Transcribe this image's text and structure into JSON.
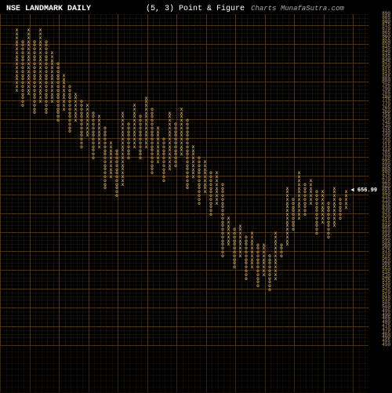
{
  "header": {
    "title_left": "NSE LANDMARK DAILY",
    "title_mid": "(5, 3) Point & Figure",
    "title_source": "Charts MunafaSutra.com"
  },
  "chart": {
    "background_color": "#000000",
    "grid_color": "#6b4a1a",
    "grid_color_dim": "#3a2810",
    "text_color": "#ffffff",
    "axis_label_color": "#c9a860",
    "x_symbol_color": "#d4a860",
    "o_symbol_color": "#d4a860",
    "price_marker_color": "#ffffff",
    "y_max": 890,
    "y_min": 450,
    "y_step": 5,
    "box_size": 5,
    "reversal": 3,
    "current_price": 656.99,
    "current_price_y": 655,
    "columns": [
      {
        "type": "X",
        "low": 790,
        "high": 870
      },
      {
        "type": "O",
        "low": 770,
        "high": 855
      },
      {
        "type": "X",
        "low": 785,
        "high": 870
      },
      {
        "type": "O",
        "low": 760,
        "high": 855
      },
      {
        "type": "X",
        "low": 775,
        "high": 870
      },
      {
        "type": "O",
        "low": 760,
        "high": 855
      },
      {
        "type": "X",
        "low": 775,
        "high": 840
      },
      {
        "type": "O",
        "low": 750,
        "high": 825
      },
      {
        "type": "X",
        "low": 765,
        "high": 810
      },
      {
        "type": "O",
        "low": 735,
        "high": 795
      },
      {
        "type": "X",
        "low": 750,
        "high": 785
      },
      {
        "type": "O",
        "low": 715,
        "high": 775
      },
      {
        "type": "X",
        "low": 730,
        "high": 770
      },
      {
        "type": "O",
        "low": 700,
        "high": 760
      },
      {
        "type": "X",
        "low": 715,
        "high": 755
      },
      {
        "type": "O",
        "low": 660,
        "high": 740
      },
      {
        "type": "X",
        "low": 675,
        "high": 720
      },
      {
        "type": "O",
        "low": 650,
        "high": 710
      },
      {
        "type": "X",
        "low": 665,
        "high": 760
      },
      {
        "type": "O",
        "low": 700,
        "high": 745
      },
      {
        "type": "X",
        "low": 715,
        "high": 770
      },
      {
        "type": "O",
        "low": 700,
        "high": 755
      },
      {
        "type": "X",
        "low": 715,
        "high": 780
      },
      {
        "type": "O",
        "low": 680,
        "high": 765
      },
      {
        "type": "X",
        "low": 695,
        "high": 740
      },
      {
        "type": "O",
        "low": 670,
        "high": 725
      },
      {
        "type": "X",
        "low": 685,
        "high": 760
      },
      {
        "type": "O",
        "low": 690,
        "high": 745
      },
      {
        "type": "X",
        "low": 705,
        "high": 765
      },
      {
        "type": "O",
        "low": 660,
        "high": 750
      },
      {
        "type": "X",
        "low": 675,
        "high": 715
      },
      {
        "type": "O",
        "low": 640,
        "high": 700
      },
      {
        "type": "X",
        "low": 655,
        "high": 695
      },
      {
        "type": "O",
        "low": 625,
        "high": 680
      },
      {
        "type": "X",
        "low": 640,
        "high": 680
      },
      {
        "type": "O",
        "low": 570,
        "high": 665
      },
      {
        "type": "X",
        "low": 585,
        "high": 620
      },
      {
        "type": "O",
        "low": 555,
        "high": 605
      },
      {
        "type": "X",
        "low": 570,
        "high": 610
      },
      {
        "type": "O",
        "low": 540,
        "high": 595
      },
      {
        "type": "X",
        "low": 555,
        "high": 600
      },
      {
        "type": "O",
        "low": 530,
        "high": 585
      },
      {
        "type": "X",
        "low": 545,
        "high": 585
      },
      {
        "type": "O",
        "low": 525,
        "high": 570
      },
      {
        "type": "X",
        "low": 540,
        "high": 600
      },
      {
        "type": "O",
        "low": 570,
        "high": 585
      },
      {
        "type": "X",
        "low": 585,
        "high": 660
      },
      {
        "type": "O",
        "low": 605,
        "high": 645
      },
      {
        "type": "X",
        "low": 620,
        "high": 680
      },
      {
        "type": "O",
        "low": 625,
        "high": 665
      },
      {
        "type": "X",
        "low": 640,
        "high": 670
      },
      {
        "type": "O",
        "low": 600,
        "high": 655
      },
      {
        "type": "X",
        "low": 615,
        "high": 655
      },
      {
        "type": "O",
        "low": 595,
        "high": 640
      },
      {
        "type": "X",
        "low": 610,
        "high": 660
      },
      {
        "type": "O",
        "low": 620,
        "high": 645
      },
      {
        "type": "X",
        "low": 635,
        "high": 655
      }
    ]
  }
}
